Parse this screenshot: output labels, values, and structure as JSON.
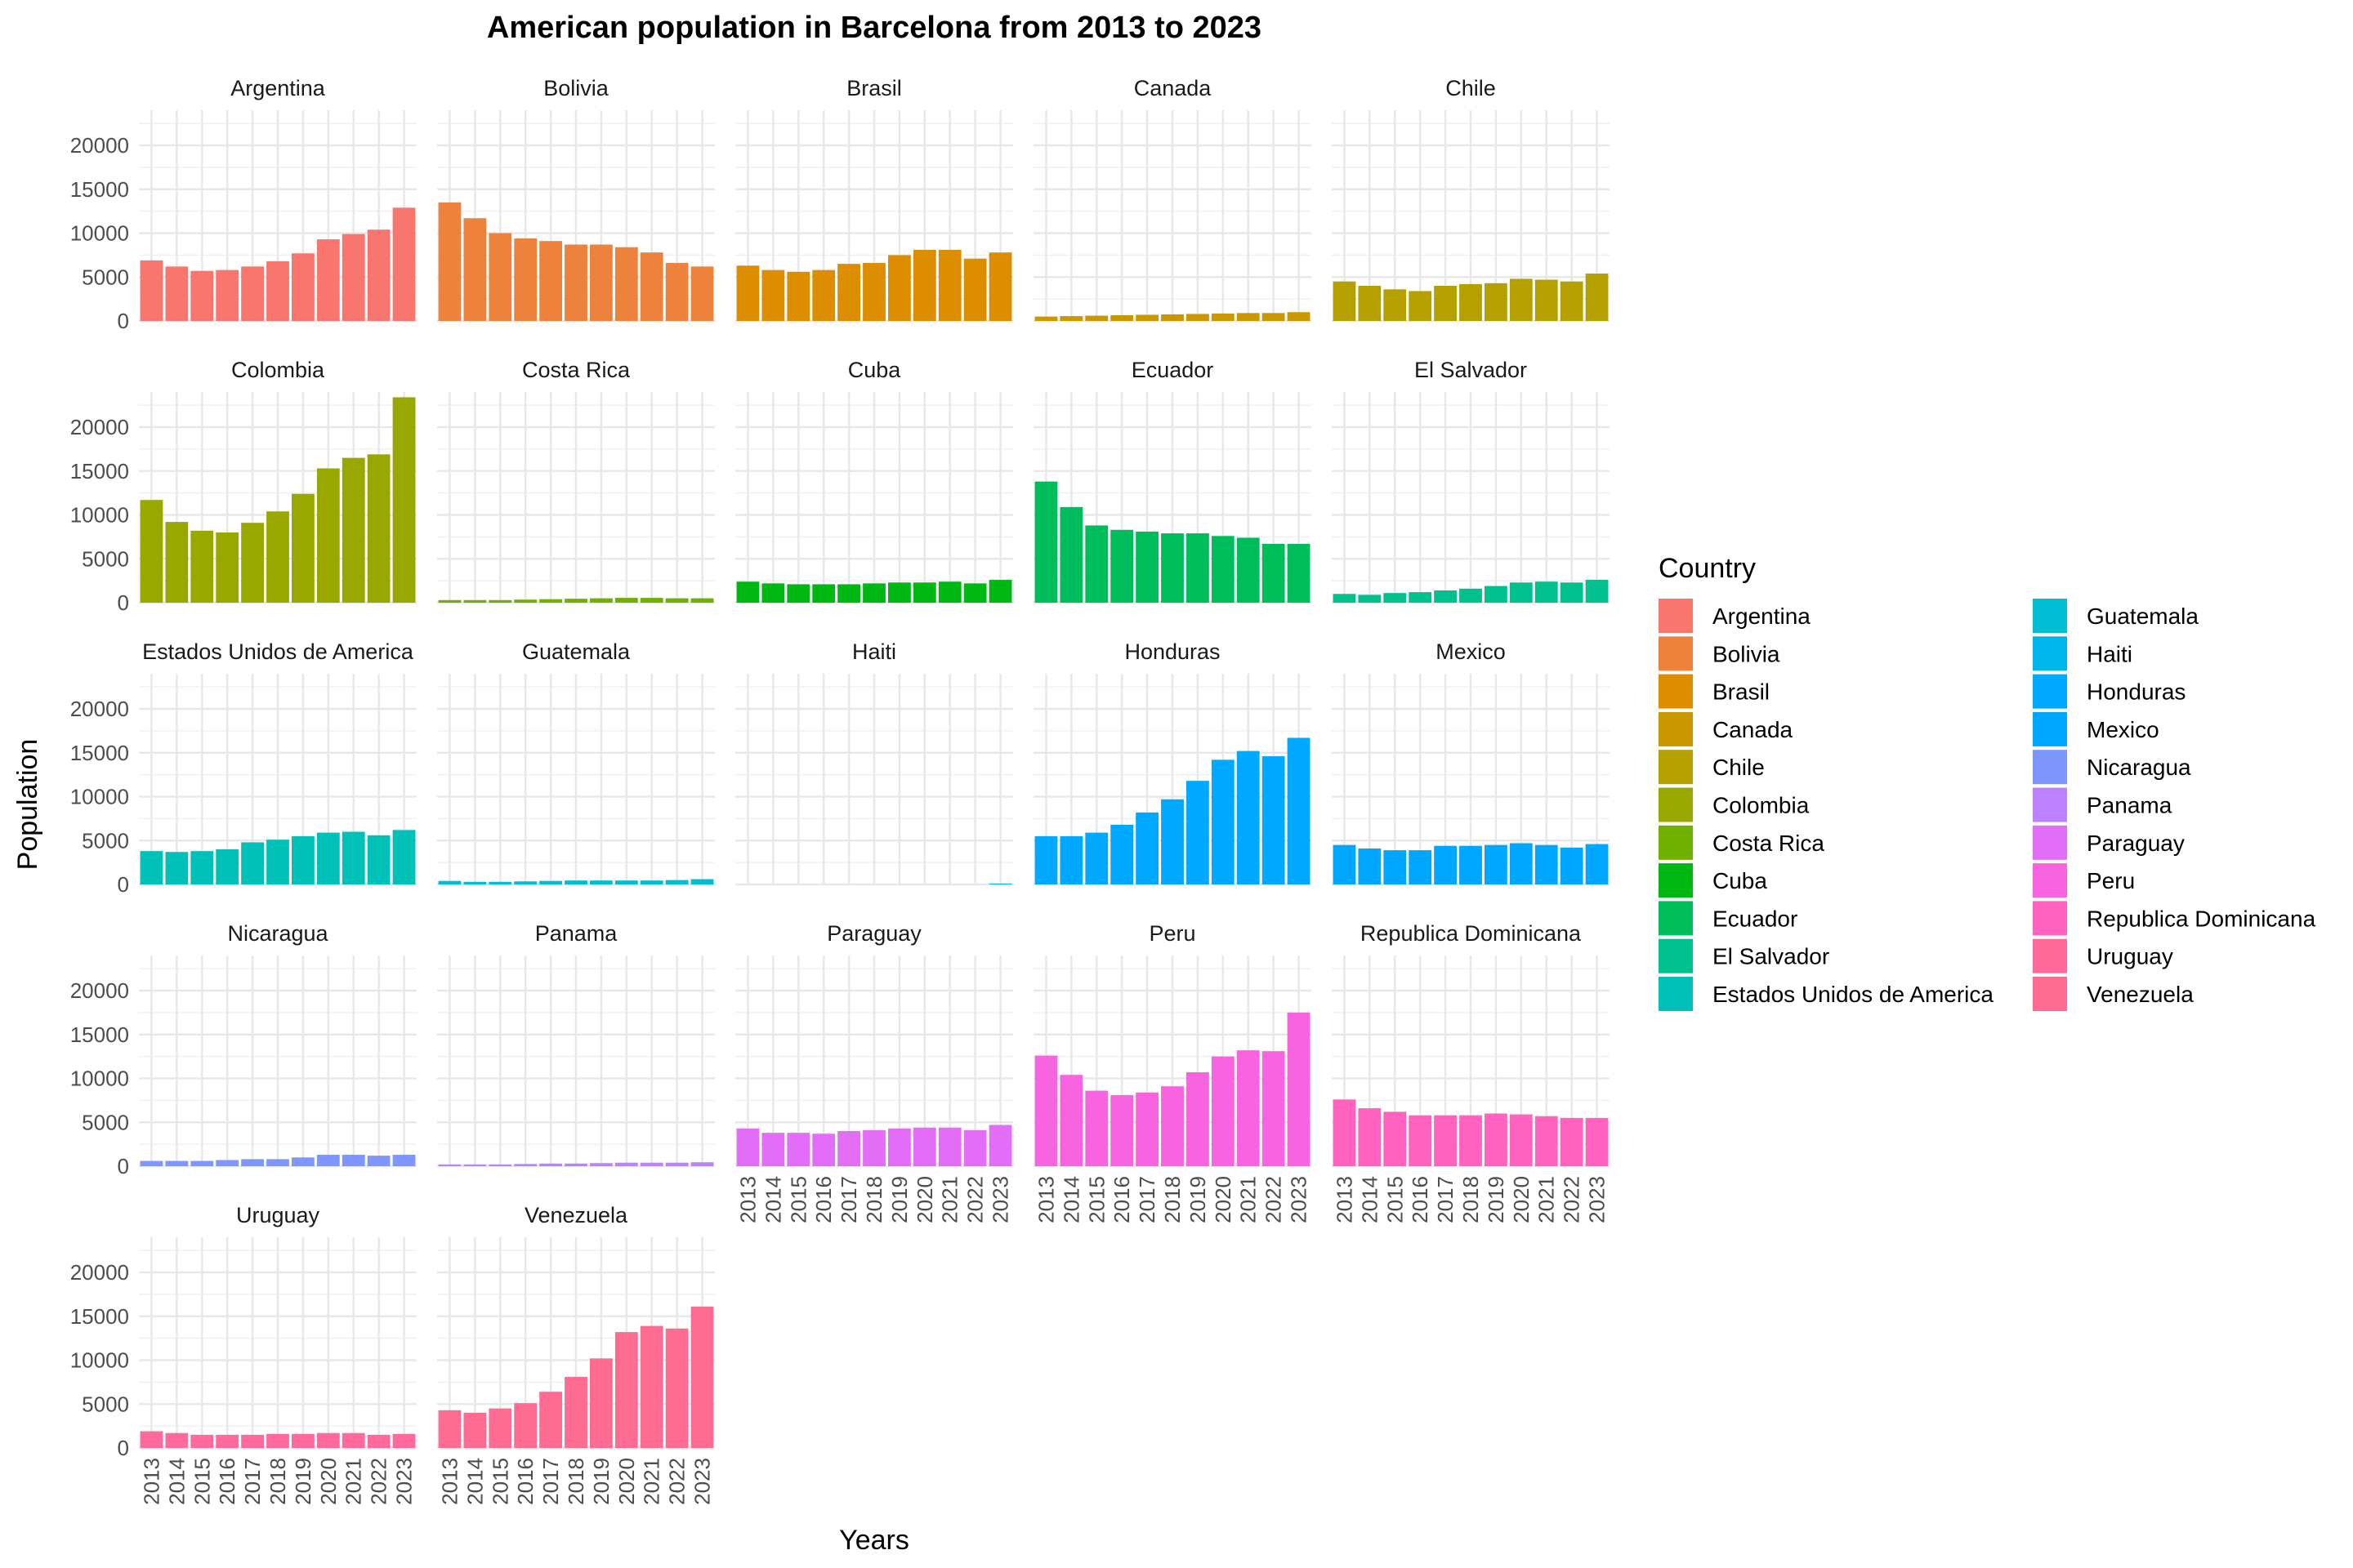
{
  "chart_data": {
    "type": "bar",
    "title": "American population in Barcelona from 2013 to 2023",
    "xlabel": "Years",
    "ylabel": "Population",
    "categories": [
      "2013",
      "2014",
      "2015",
      "2016",
      "2017",
      "2018",
      "2019",
      "2020",
      "2021",
      "2022",
      "2023"
    ],
    "ylim": [
      0,
      24000
    ],
    "yticks": [
      0,
      5000,
      10000,
      15000,
      20000
    ],
    "grid": true,
    "legend": {
      "title": "Country",
      "placement": "right"
    },
    "series": [
      {
        "name": "Argentina",
        "color": "#F8766D",
        "values": [
          6900,
          6200,
          5700,
          5800,
          6200,
          6800,
          7700,
          9300,
          9900,
          10400,
          12900
        ]
      },
      {
        "name": "Bolivia",
        "color": "#EC823C",
        "values": [
          13500,
          11700,
          10000,
          9400,
          9100,
          8700,
          8700,
          8400,
          7800,
          6600,
          6200
        ]
      },
      {
        "name": "Brasil",
        "color": "#DD8D00",
        "values": [
          6300,
          5800,
          5600,
          5800,
          6500,
          6600,
          7500,
          8100,
          8100,
          7100,
          7800
        ]
      },
      {
        "name": "Canada",
        "color": "#CA9700",
        "values": [
          500,
          550,
          600,
          650,
          700,
          750,
          800,
          850,
          900,
          900,
          1000
        ]
      },
      {
        "name": "Chile",
        "color": "#B4A000",
        "values": [
          4500,
          4000,
          3600,
          3400,
          4000,
          4200,
          4300,
          4800,
          4700,
          4500,
          5400
        ]
      },
      {
        "name": "Colombia",
        "color": "#98A800",
        "values": [
          11700,
          9200,
          8200,
          8000,
          9100,
          10400,
          12400,
          15300,
          16500,
          16900,
          23400
        ]
      },
      {
        "name": "Costa Rica",
        "color": "#70B000",
        "values": [
          300,
          300,
          300,
          350,
          400,
          450,
          500,
          550,
          550,
          500,
          500
        ]
      },
      {
        "name": "Cuba",
        "color": "#00B813",
        "values": [
          2400,
          2200,
          2100,
          2100,
          2100,
          2200,
          2300,
          2300,
          2400,
          2200,
          2600
        ]
      },
      {
        "name": "Ecuador",
        "color": "#00BD5C",
        "values": [
          13800,
          10900,
          8800,
          8300,
          8100,
          7900,
          7900,
          7600,
          7400,
          6700,
          6700
        ]
      },
      {
        "name": "El Salvador",
        "color": "#00C08E",
        "values": [
          1000,
          900,
          1100,
          1200,
          1400,
          1600,
          1900,
          2300,
          2400,
          2300,
          2600
        ]
      },
      {
        "name": "Estados Unidos de America",
        "color": "#00C1B7",
        "values": [
          3800,
          3700,
          3800,
          4000,
          4800,
          5100,
          5500,
          5900,
          6000,
          5600,
          6200
        ]
      },
      {
        "name": "Guatemala",
        "color": "#00BDD4",
        "values": [
          400,
          300,
          300,
          350,
          400,
          450,
          450,
          450,
          450,
          500,
          600
        ]
      },
      {
        "name": "Haiti",
        "color": "#00B5EB",
        "values": [
          0,
          0,
          0,
          0,
          0,
          0,
          0,
          0,
          0,
          0,
          100
        ]
      },
      {
        "name": "Honduras",
        "color": "#00A8FF",
        "values": [
          5500,
          5500,
          5900,
          6800,
          8200,
          9700,
          11800,
          14200,
          15200,
          14600,
          16700
        ]
      },
      {
        "name": "Mexico",
        "color": "#00A7FF",
        "values": [
          4500,
          4100,
          3900,
          3900,
          4400,
          4400,
          4500,
          4700,
          4500,
          4200,
          4600
        ]
      },
      {
        "name": "Nicaragua",
        "color": "#7F96FF",
        "values": [
          600,
          600,
          600,
          700,
          800,
          800,
          1000,
          1300,
          1300,
          1200,
          1300
        ]
      },
      {
        "name": "Panama",
        "color": "#BC81FF",
        "values": [
          200,
          200,
          200,
          250,
          300,
          300,
          350,
          400,
          400,
          400,
          450
        ]
      },
      {
        "name": "Paraguay",
        "color": "#E26EF7",
        "values": [
          4300,
          3800,
          3800,
          3700,
          4000,
          4100,
          4300,
          4400,
          4400,
          4100,
          4700
        ]
      },
      {
        "name": "Peru",
        "color": "#F863DF",
        "values": [
          12600,
          10400,
          8600,
          8100,
          8400,
          9100,
          10700,
          12500,
          13200,
          13100,
          17500
        ]
      },
      {
        "name": "Republica Dominicana",
        "color": "#FF62BF",
        "values": [
          7600,
          6600,
          6200,
          5800,
          5800,
          5800,
          6000,
          5900,
          5700,
          5500,
          5500
        ]
      },
      {
        "name": "Uruguay",
        "color": "#FF6A9A",
        "values": [
          1900,
          1700,
          1500,
          1500,
          1500,
          1600,
          1600,
          1700,
          1700,
          1500,
          1600
        ]
      },
      {
        "name": "Venezuela",
        "color": "#FF6C91",
        "values": [
          4300,
          4000,
          4500,
          5100,
          6400,
          8100,
          10200,
          13200,
          13900,
          13600,
          16100
        ]
      }
    ]
  }
}
